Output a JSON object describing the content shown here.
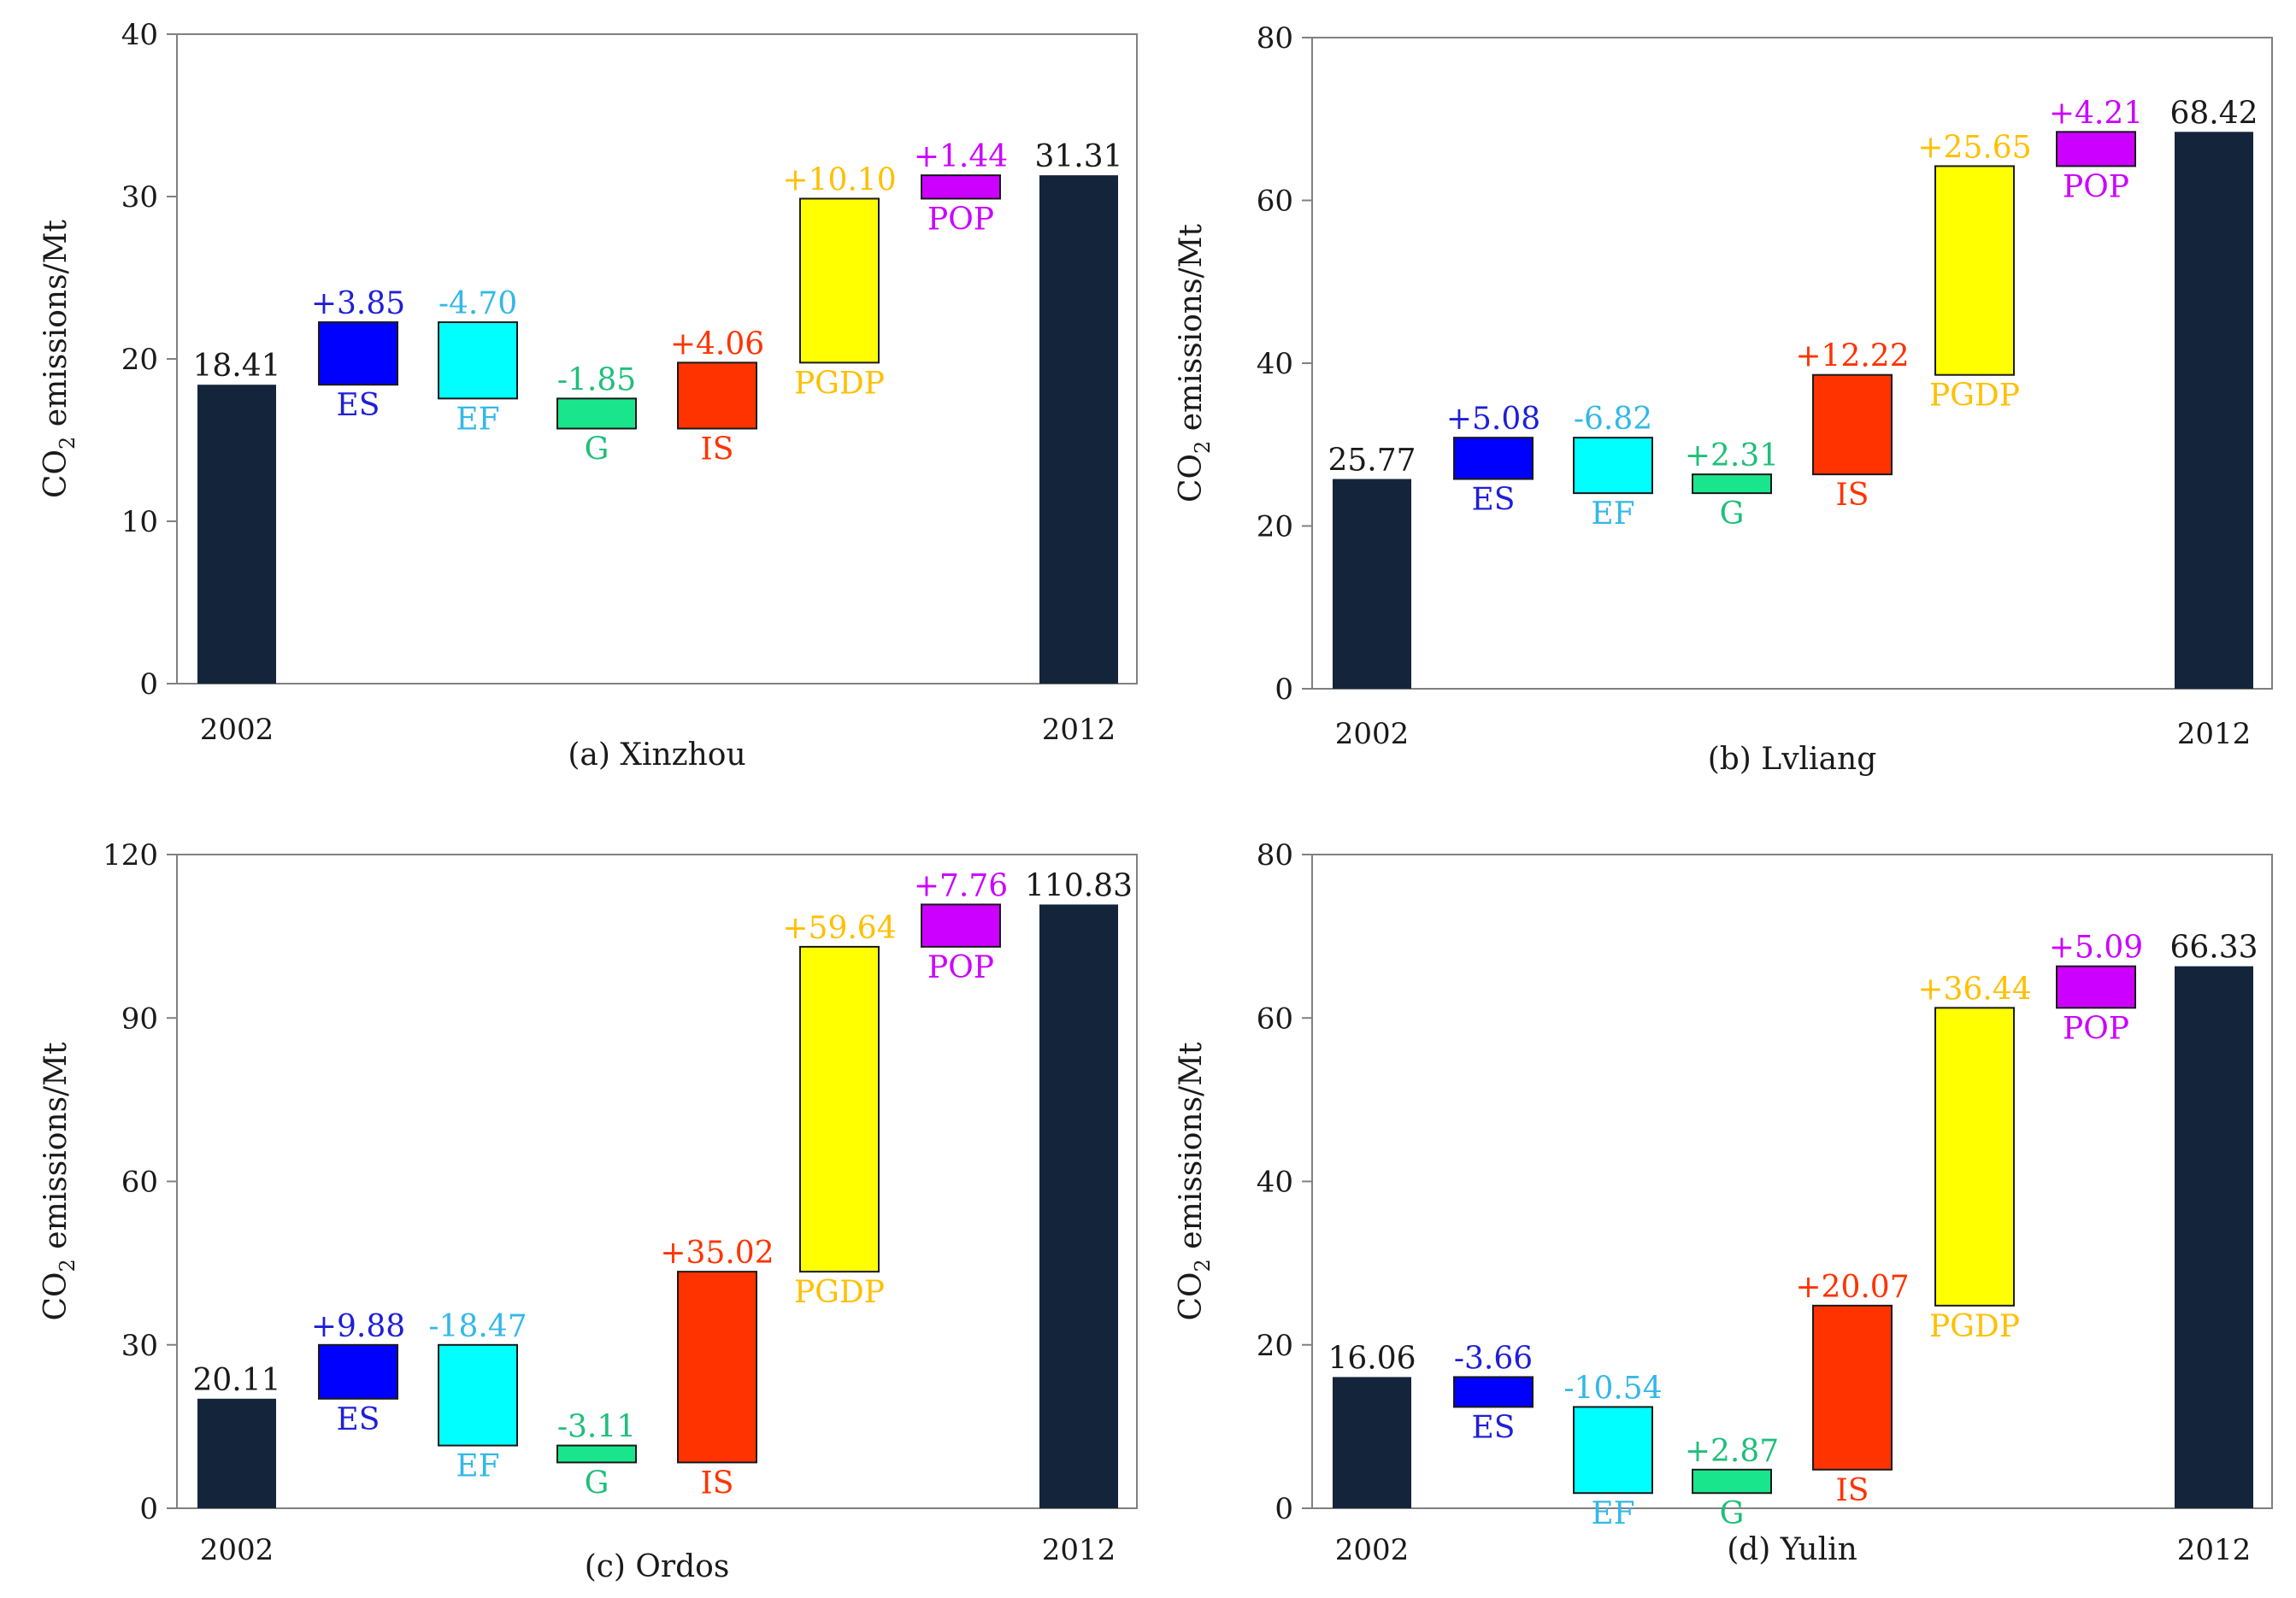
{
  "y_axis_label": {
    "main": "CO",
    "sub": "2",
    "rest": " emissions/Mt"
  },
  "colors": {
    "total": "#14253b",
    "ES": "#0000ff",
    "EF": "#00ffff",
    "G": "#19e68c",
    "IS": "#ff3300",
    "PGDP": "#ffff00",
    "POP": "#cc00ff",
    "label_ES": "#1f1fd6",
    "label_EF": "#33b8e8",
    "label_G": "#1fbf7a",
    "label_IS": "#ff3300",
    "label_PGDP": "#ffbf00",
    "label_POP": "#cc00ff",
    "axis": "#808080",
    "text": "#1a1a1a"
  },
  "chart_data": [
    {
      "type": "bar",
      "subtype": "waterfall",
      "title": "(a) Xinzhou",
      "ylabel": "CO2 emissions/Mt",
      "ylim": [
        0,
        40
      ],
      "yticks": [
        "0",
        "10",
        "20",
        "30",
        "40"
      ],
      "start": {
        "label": "2002",
        "value": 18.41,
        "value_label": "18.41"
      },
      "end": {
        "label": "2012",
        "value": 31.31,
        "value_label": "31.31"
      },
      "steps": [
        {
          "name": "ES",
          "value": 3.85,
          "value_label": "+3.85",
          "low": 18.41,
          "high": 22.26
        },
        {
          "name": "EF",
          "value": -4.7,
          "value_label": "-4.70",
          "low": 17.56,
          "high": 22.26
        },
        {
          "name": "G",
          "value": -1.85,
          "value_label": "-1.85",
          "low": 15.71,
          "high": 17.56
        },
        {
          "name": "IS",
          "value": 4.06,
          "value_label": "+4.06",
          "low": 15.71,
          "high": 19.77
        },
        {
          "name": "PGDP",
          "value": 10.1,
          "value_label": "+10.10",
          "low": 19.77,
          "high": 29.87
        },
        {
          "name": "POP",
          "value": 1.44,
          "value_label": "+1.44",
          "low": 29.87,
          "high": 31.31
        }
      ]
    },
    {
      "type": "bar",
      "subtype": "waterfall",
      "title": "(b) Lvliang",
      "ylabel": "CO2 emissions/Mt",
      "ylim": [
        0,
        80
      ],
      "yticks": [
        "0",
        "20",
        "40",
        "60",
        "80"
      ],
      "start": {
        "label": "2002",
        "value": 25.77,
        "value_label": "25.77"
      },
      "end": {
        "label": "2012",
        "value": 68.42,
        "value_label": "68.42"
      },
      "steps": [
        {
          "name": "ES",
          "value": 5.08,
          "value_label": "+5.08",
          "low": 25.77,
          "high": 30.85
        },
        {
          "name": "EF",
          "value": -6.82,
          "value_label": "-6.82",
          "low": 24.03,
          "high": 30.85
        },
        {
          "name": "G",
          "value": 2.31,
          "value_label": "+2.31",
          "low": 24.03,
          "high": 26.34
        },
        {
          "name": "IS",
          "value": 12.22,
          "value_label": "+12.22",
          "low": 26.34,
          "high": 38.56
        },
        {
          "name": "PGDP",
          "value": 25.65,
          "value_label": "+25.65",
          "low": 38.56,
          "high": 64.21
        },
        {
          "name": "POP",
          "value": 4.21,
          "value_label": "+4.21",
          "low": 64.21,
          "high": 68.42
        }
      ]
    },
    {
      "type": "bar",
      "subtype": "waterfall",
      "title": "(c) Ordos",
      "ylabel": "CO2 emissions/Mt",
      "ylim": [
        0,
        120
      ],
      "yticks": [
        "0",
        "30",
        "60",
        "90",
        "120"
      ],
      "start": {
        "label": "2002",
        "value": 20.11,
        "value_label": "20.11"
      },
      "end": {
        "label": "2012",
        "value": 110.83,
        "value_label": "110.83"
      },
      "steps": [
        {
          "name": "ES",
          "value": 9.88,
          "value_label": "+9.88",
          "low": 20.11,
          "high": 29.99
        },
        {
          "name": "EF",
          "value": -18.47,
          "value_label": "-18.47",
          "low": 11.52,
          "high": 29.99
        },
        {
          "name": "G",
          "value": -3.11,
          "value_label": "-3.11",
          "low": 8.41,
          "high": 11.52
        },
        {
          "name": "IS",
          "value": 35.02,
          "value_label": "+35.02",
          "low": 8.41,
          "high": 43.43
        },
        {
          "name": "PGDP",
          "value": 59.64,
          "value_label": "+59.64",
          "low": 43.43,
          "high": 103.07
        },
        {
          "name": "POP",
          "value": 7.76,
          "value_label": "+7.76",
          "low": 103.07,
          "high": 110.83
        }
      ]
    },
    {
      "type": "bar",
      "subtype": "waterfall",
      "title": "(d) Yulin",
      "ylabel": "CO2 emissions/Mt",
      "ylim": [
        0,
        80
      ],
      "yticks": [
        "0",
        "20",
        "40",
        "60",
        "80"
      ],
      "start": {
        "label": "2002",
        "value": 16.06,
        "value_label": "16.06"
      },
      "end": {
        "label": "2012",
        "value": 66.33,
        "value_label": "66.33"
      },
      "steps": [
        {
          "name": "ES",
          "value": -3.66,
          "value_label": "-3.66",
          "low": 12.4,
          "high": 16.06
        },
        {
          "name": "EF",
          "value": -10.54,
          "value_label": "-10.54",
          "low": 1.86,
          "high": 12.4
        },
        {
          "name": "G",
          "value": 2.87,
          "value_label": "+2.87",
          "low": 1.86,
          "high": 4.73
        },
        {
          "name": "IS",
          "value": 20.07,
          "value_label": "+20.07",
          "low": 4.73,
          "high": 24.8
        },
        {
          "name": "PGDP",
          "value": 36.44,
          "value_label": "+36.44",
          "low": 24.8,
          "high": 61.24
        },
        {
          "name": "POP",
          "value": 5.09,
          "value_label": "+5.09",
          "low": 61.24,
          "high": 66.33
        }
      ]
    }
  ]
}
